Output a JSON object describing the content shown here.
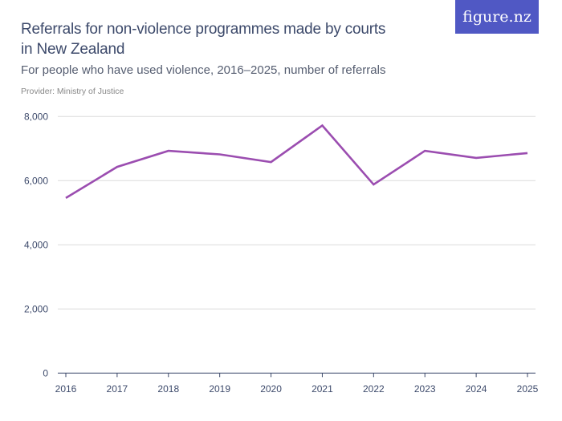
{
  "title": "Referrals for non-violence programmes made by courts in New Zealand",
  "subtitle": "For people who have used violence, 2016–2025, number of referrals",
  "provider": "Provider: Ministry of Justice",
  "logo": "figure.nz",
  "colors": {
    "line": "#9b4db0",
    "logo_bg": "#5058c4",
    "text": "#3d4a6b"
  },
  "chart_data": {
    "type": "line",
    "categories": [
      "2016",
      "2017",
      "2018",
      "2019",
      "2020",
      "2021",
      "2022",
      "2023",
      "2024",
      "2025"
    ],
    "series": [
      {
        "values": [
          5460,
          6430,
          6930,
          6820,
          6580,
          7720,
          5880,
          6930,
          6710,
          6860
        ]
      }
    ],
    "yticks": [
      0,
      2000,
      4000,
      6000,
      8000
    ],
    "ytick_labels": [
      "0",
      "2,000",
      "4,000",
      "6,000",
      "8,000"
    ],
    "ylim": [
      0,
      8000
    ],
    "grid": true
  }
}
